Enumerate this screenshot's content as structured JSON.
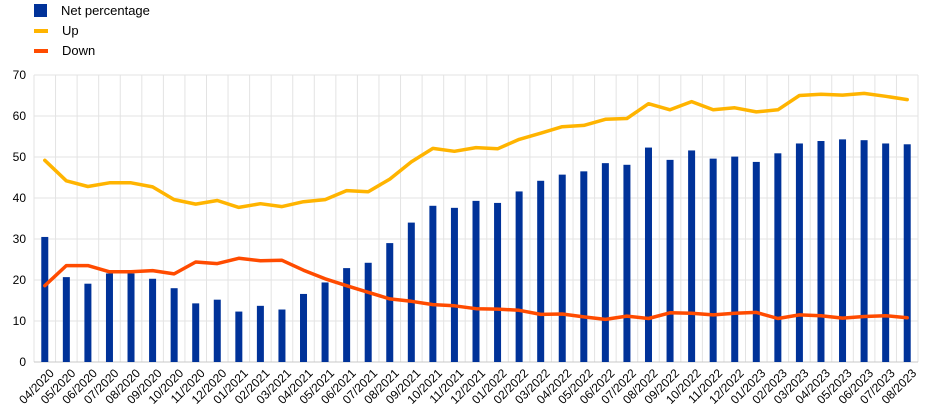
{
  "chart_data": {
    "type": "bar",
    "title": "",
    "xlabel": "",
    "ylabel": "",
    "ylim": [
      0,
      70
    ],
    "yticks": [
      0,
      10,
      20,
      30,
      40,
      50,
      60,
      70
    ],
    "grid": true,
    "legend_position": "top-left",
    "categories": [
      "04/2020",
      "05/2020",
      "06/2020",
      "07/2020",
      "08/2020",
      "09/2020",
      "10/2020",
      "11/2020",
      "12/2020",
      "01/2021",
      "02/2021",
      "03/2021",
      "04/2021",
      "05/2021",
      "06/2021",
      "07/2021",
      "08/2021",
      "09/2021",
      "10/2021",
      "11/2021",
      "12/2021",
      "01/2022",
      "02/2022",
      "03/2022",
      "04/2022",
      "05/2022",
      "06/2022",
      "07/2022",
      "08/2022",
      "09/2022",
      "10/2022",
      "11/2022",
      "12/2022",
      "01/2023",
      "02/2023",
      "03/2023",
      "04/2023",
      "05/2023",
      "06/2023",
      "07/2023",
      "08/2023"
    ],
    "series": [
      {
        "name": "Net percentage",
        "type": "bar",
        "color": "#003299",
        "values": [
          30.5,
          20.7,
          19.1,
          21.6,
          21.6,
          20.3,
          18.0,
          14.3,
          15.2,
          12.3,
          13.7,
          12.8,
          16.6,
          19.4,
          22.9,
          24.2,
          29.0,
          34.0,
          38.1,
          37.6,
          39.3,
          38.8,
          41.6,
          44.2,
          45.7,
          46.5,
          48.5,
          48.1,
          52.3,
          49.3,
          51.6,
          49.6,
          50.1,
          48.8,
          50.9,
          53.3,
          53.9,
          54.3,
          54.1,
          53.3,
          53.1
        ]
      },
      {
        "name": "Up",
        "type": "line",
        "color": "#FFB400",
        "values": [
          49.2,
          44.2,
          42.8,
          43.7,
          43.7,
          42.7,
          39.6,
          38.5,
          39.4,
          37.7,
          38.6,
          37.9,
          39.1,
          39.6,
          41.8,
          41.5,
          44.6,
          48.8,
          52.1,
          51.4,
          52.3,
          52.0,
          54.3,
          55.8,
          57.4,
          57.7,
          59.2,
          59.4,
          63.0,
          61.5,
          63.5,
          61.5,
          62.0,
          61.0,
          61.5,
          65.0,
          65.3,
          65.1,
          65.5,
          64.8,
          64.0
        ]
      },
      {
        "name": "Down",
        "type": "line",
        "color": "#FF4B00",
        "values": [
          18.6,
          23.5,
          23.5,
          22.0,
          22.0,
          22.3,
          21.5,
          24.4,
          24.0,
          25.3,
          24.7,
          24.8,
          22.4,
          20.3,
          18.6,
          17.0,
          15.4,
          14.8,
          14.0,
          13.7,
          13.0,
          12.9,
          12.6,
          11.6,
          11.7,
          11.0,
          10.4,
          11.2,
          10.6,
          12.0,
          11.9,
          11.5,
          11.9,
          12.1,
          10.6,
          11.5,
          11.3,
          10.7,
          11.1,
          11.3,
          10.8
        ]
      }
    ]
  }
}
